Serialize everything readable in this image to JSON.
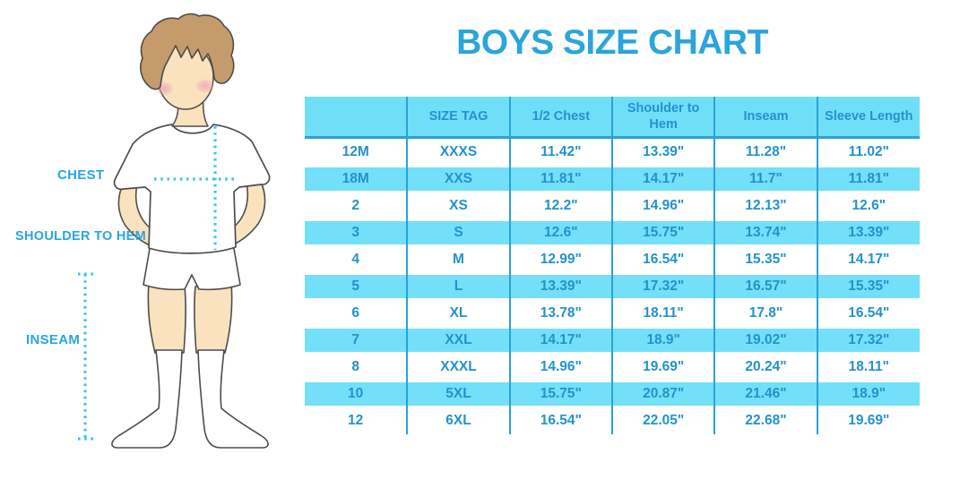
{
  "title": "BOYS SIZE CHART",
  "colors": {
    "title": "#2BA5DB",
    "label": "#29A4E4",
    "header_bg": "#71DEF8",
    "row_bg": "#74DFF8",
    "cell_text": "#2392CC",
    "divider": "#2AA2D5",
    "dotted": "#3BC4F0",
    "outline": "#4d4d4d",
    "skin": "#F9E2BD",
    "hair": "#C59B6B",
    "blush": "#EE9FB4"
  },
  "diagram": {
    "labels": {
      "chest": "CHEST",
      "shoulder_to_hem": "SHOULDER TO HEM",
      "inseam": "INSEAM"
    }
  },
  "chart_data": {
    "type": "table",
    "title": "BOYS SIZE CHART",
    "headers": [
      "",
      "SIZE TAG",
      "1/2 Chest",
      "Shoulder to Hem",
      "Inseam",
      "Sleeve Length"
    ],
    "rows": [
      [
        "12M",
        "XXXS",
        "11.42\"",
        "13.39\"",
        "11.28\"",
        "11.02\""
      ],
      [
        "18M",
        "XXS",
        "11.81\"",
        "14.17\"",
        "11.7\"",
        "11.81\""
      ],
      [
        "2",
        "XS",
        "12.2\"",
        "14.96\"",
        "12.13\"",
        "12.6\""
      ],
      [
        "3",
        "S",
        "12.6\"",
        "15.75\"",
        "13.74\"",
        "13.39\""
      ],
      [
        "4",
        "M",
        "12.99\"",
        "16.54\"",
        "15.35\"",
        "14.17\""
      ],
      [
        "5",
        "L",
        "13.39\"",
        "17.32\"",
        "16.57\"",
        "15.35\""
      ],
      [
        "6",
        "XL",
        "13.78\"",
        "18.11\"",
        "17.8\"",
        "16.54\""
      ],
      [
        "7",
        "XXL",
        "14.17\"",
        "18.9\"",
        "19.02\"",
        "17.32\""
      ],
      [
        "8",
        "XXXL",
        "14.96\"",
        "19.69\"",
        "20.24\"",
        "18.11\""
      ],
      [
        "10",
        "5XL",
        "15.75\"",
        "20.87\"",
        "21.46\"",
        "18.9\""
      ],
      [
        "12",
        "6XL",
        "16.54\"",
        "22.05\"",
        "22.68\"",
        "19.69\""
      ]
    ]
  }
}
